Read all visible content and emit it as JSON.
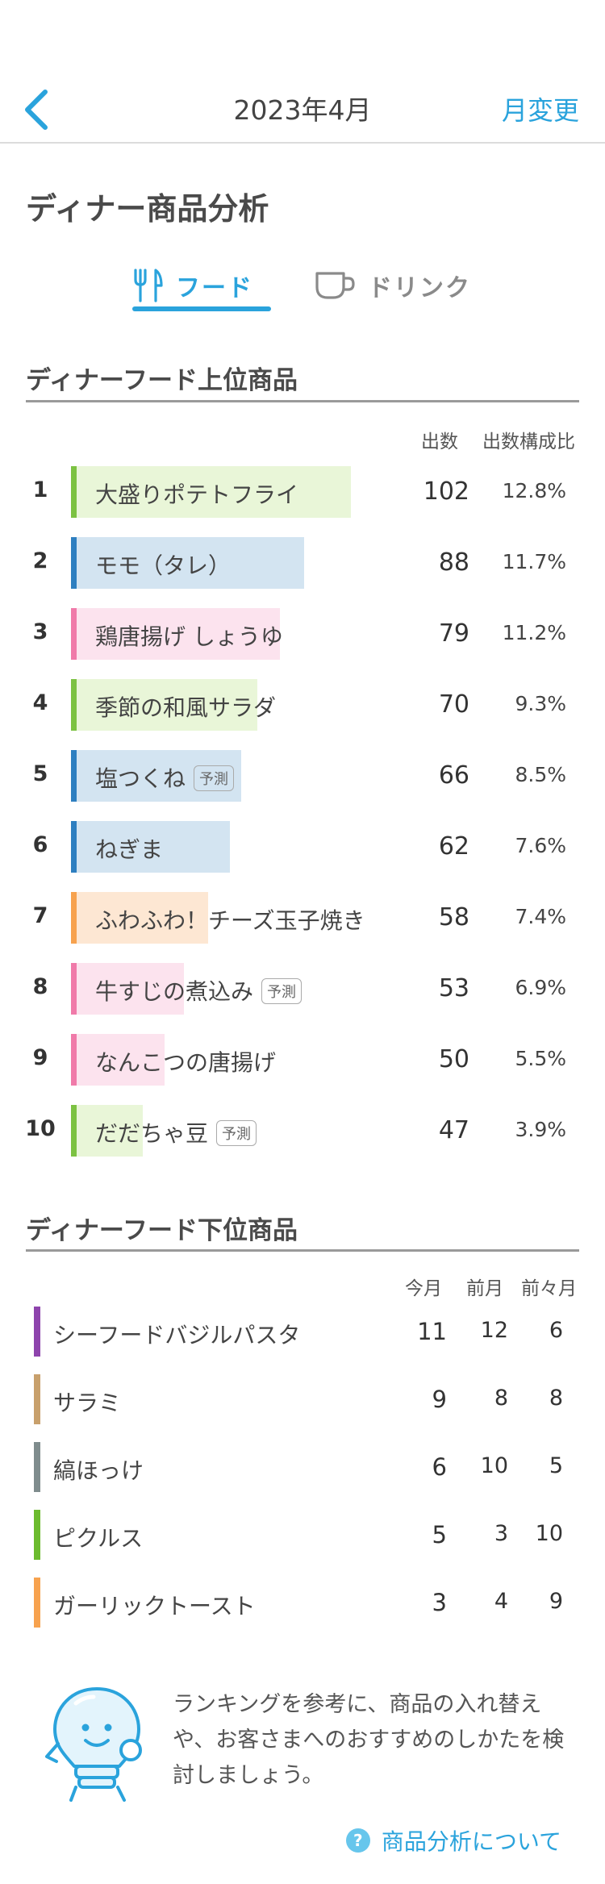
{
  "header": {
    "month": "2023年4月",
    "change_label": "月変更"
  },
  "page": {
    "title": "ディナー商品分析"
  },
  "tabs": [
    {
      "label": "フード",
      "active": true
    },
    {
      "label": "ドリンク",
      "active": false
    }
  ],
  "top_section": {
    "title": "ディナーフード上位商品",
    "col_count": "出数",
    "col_ratio": "出数構成比",
    "badge_label": "予測",
    "items": [
      {
        "rank": "1",
        "name": "大盛りポテトフライ",
        "count": "102",
        "ratio": "12.8%",
        "share": 1.0,
        "color": "#7cc242",
        "fill": "#e9f6d8",
        "forecast": false
      },
      {
        "rank": "2",
        "name": "モモ（タレ）",
        "count": "88",
        "ratio": "11.7%",
        "share": 0.83,
        "color": "#2e7fc0",
        "fill": "#d3e4f1",
        "forecast": false
      },
      {
        "rank": "3",
        "name": "鶏唐揚げ しょうゆ",
        "count": "79",
        "ratio": "11.2%",
        "share": 0.74,
        "color": "#f07aa9",
        "fill": "#fce3ee",
        "forecast": false
      },
      {
        "rank": "4",
        "name": "季節の和風サラダ",
        "count": "70",
        "ratio": "9.3%",
        "share": 0.66,
        "color": "#7cc242",
        "fill": "#e9f6d8",
        "forecast": false
      },
      {
        "rank": "5",
        "name": "塩つくね",
        "count": "66",
        "ratio": "8.5%",
        "share": 0.6,
        "color": "#2e7fc0",
        "fill": "#d3e4f1",
        "forecast": true
      },
      {
        "rank": "6",
        "name": "ねぎま",
        "count": "62",
        "ratio": "7.6%",
        "share": 0.56,
        "color": "#2e7fc0",
        "fill": "#d3e4f1",
        "forecast": false
      },
      {
        "rank": "7",
        "name": "ふわふわ！チーズ玉子焼き",
        "count": "58",
        "ratio": "7.4%",
        "share": 0.48,
        "color": "#f7a24e",
        "fill": "#fde7d3",
        "forecast": false
      },
      {
        "rank": "8",
        "name": "牛すじの煮込み",
        "count": "53",
        "ratio": "6.9%",
        "share": 0.39,
        "color": "#f07aa9",
        "fill": "#fce3ee",
        "forecast": true
      },
      {
        "rank": "9",
        "name": "なんこつの唐揚げ",
        "count": "50",
        "ratio": "5.5%",
        "share": 0.32,
        "color": "#f07aa9",
        "fill": "#fce3ee",
        "forecast": false
      },
      {
        "rank": "10",
        "name": "だだちゃ豆",
        "count": "47",
        "ratio": "3.9%",
        "share": 0.24,
        "color": "#7cc242",
        "fill": "#e9f6d8",
        "forecast": true
      }
    ]
  },
  "bottom_section": {
    "title": "ディナーフード下位商品",
    "col_this": "今月",
    "col_prev": "前月",
    "col_prev2": "前々月",
    "items": [
      {
        "name": "シーフードバジルパスタ",
        "this": "11",
        "prev": "12",
        "prev2": "6",
        "color": "#8e44ad"
      },
      {
        "name": "サラミ",
        "this": "9",
        "prev": "8",
        "prev2": "8",
        "color": "#c8a06c"
      },
      {
        "name": "縞ほっけ",
        "this": "6",
        "prev": "10",
        "prev2": "5",
        "color": "#7f8c8d"
      },
      {
        "name": "ピクルス",
        "this": "5",
        "prev": "3",
        "prev2": "10",
        "color": "#6cbb2e"
      },
      {
        "name": "ガーリックトースト",
        "this": "3",
        "prev": "4",
        "prev2": "9",
        "color": "#f7a24e"
      }
    ]
  },
  "tip": {
    "text": "ランキングを参考に、商品の入れ替えや、お客さまへのおすすめのしかたを検討しましょう。"
  },
  "help": {
    "icon": "?",
    "label": "商品分析について"
  },
  "colors": {
    "accent": "#2aa3dc"
  }
}
